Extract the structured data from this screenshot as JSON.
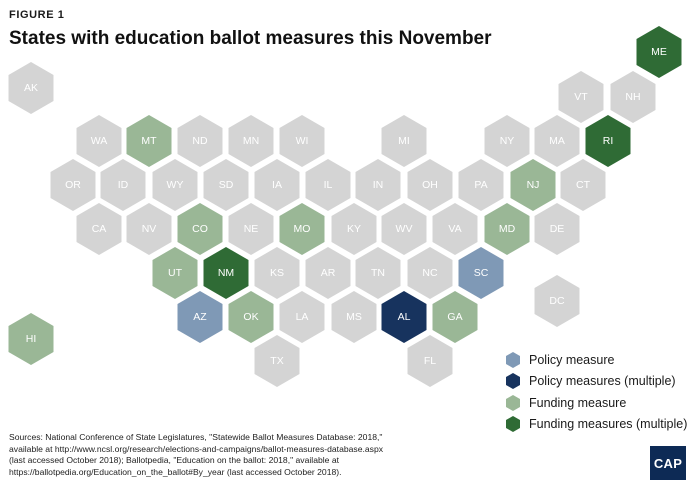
{
  "figure_label": "FIGURE 1",
  "title": "States with education ballot measures this November",
  "colors": {
    "none": "#d4d4d4",
    "policy": "#7f99b6",
    "policy_multiple": "#17335e",
    "funding": "#9ab796",
    "funding_multiple": "#2f6b35",
    "label_light": "#ffffff"
  },
  "states": [
    {
      "abbr": "AK",
      "category": "none"
    },
    {
      "abbr": "HI",
      "category": "funding"
    },
    {
      "abbr": "ME",
      "category": "funding_multiple"
    },
    {
      "abbr": "VT",
      "category": "none"
    },
    {
      "abbr": "NH",
      "category": "none"
    },
    {
      "abbr": "WA",
      "category": "none"
    },
    {
      "abbr": "MT",
      "category": "funding"
    },
    {
      "abbr": "ND",
      "category": "none"
    },
    {
      "abbr": "MN",
      "category": "none"
    },
    {
      "abbr": "WI",
      "category": "none"
    },
    {
      "abbr": "MI",
      "category": "none"
    },
    {
      "abbr": "NY",
      "category": "none"
    },
    {
      "abbr": "MA",
      "category": "none"
    },
    {
      "abbr": "RI",
      "category": "funding_multiple"
    },
    {
      "abbr": "OR",
      "category": "none"
    },
    {
      "abbr": "ID",
      "category": "none"
    },
    {
      "abbr": "WY",
      "category": "none"
    },
    {
      "abbr": "SD",
      "category": "none"
    },
    {
      "abbr": "IA",
      "category": "none"
    },
    {
      "abbr": "IL",
      "category": "none"
    },
    {
      "abbr": "IN",
      "category": "none"
    },
    {
      "abbr": "OH",
      "category": "none"
    },
    {
      "abbr": "PA",
      "category": "none"
    },
    {
      "abbr": "NJ",
      "category": "funding"
    },
    {
      "abbr": "CT",
      "category": "none"
    },
    {
      "abbr": "CA",
      "category": "none"
    },
    {
      "abbr": "NV",
      "category": "none"
    },
    {
      "abbr": "CO",
      "category": "funding"
    },
    {
      "abbr": "NE",
      "category": "none"
    },
    {
      "abbr": "MO",
      "category": "funding"
    },
    {
      "abbr": "KY",
      "category": "none"
    },
    {
      "abbr": "WV",
      "category": "none"
    },
    {
      "abbr": "VA",
      "category": "none"
    },
    {
      "abbr": "MD",
      "category": "funding"
    },
    {
      "abbr": "DE",
      "category": "none"
    },
    {
      "abbr": "UT",
      "category": "funding"
    },
    {
      "abbr": "NM",
      "category": "funding_multiple"
    },
    {
      "abbr": "KS",
      "category": "none"
    },
    {
      "abbr": "AR",
      "category": "none"
    },
    {
      "abbr": "TN",
      "category": "none"
    },
    {
      "abbr": "NC",
      "category": "none"
    },
    {
      "abbr": "SC",
      "category": "policy"
    },
    {
      "abbr": "DC",
      "category": "none"
    },
    {
      "abbr": "AZ",
      "category": "policy"
    },
    {
      "abbr": "OK",
      "category": "funding"
    },
    {
      "abbr": "LA",
      "category": "none"
    },
    {
      "abbr": "MS",
      "category": "none"
    },
    {
      "abbr": "AL",
      "category": "policy_multiple"
    },
    {
      "abbr": "GA",
      "category": "funding"
    },
    {
      "abbr": "TX",
      "category": "none"
    },
    {
      "abbr": "FL",
      "category": "none"
    }
  ],
  "legend": [
    {
      "label": "Policy measure",
      "category": "policy"
    },
    {
      "label": "Policy measures (multiple)",
      "category": "policy_multiple"
    },
    {
      "label": "Funding measure",
      "category": "funding"
    },
    {
      "label": "Funding measures (multiple)",
      "category": "funding_multiple"
    }
  ],
  "source": {
    "line1": "Sources: National Conference of State Legislatures, \"Statewide Ballot Measures Database: 2018,\"",
    "line2": "available at http://www.ncsl.org/research/elections-and-campaigns/ballot-measures-database.aspx",
    "line3": "(last accessed October 2018); Ballotpedia, \"Education on the ballot: 2018,\" available at",
    "line4": "https://ballotpedia.org/Education_on_the_ballot#By_year (last accessed October 2018)."
  },
  "logo_text": "CAP"
}
